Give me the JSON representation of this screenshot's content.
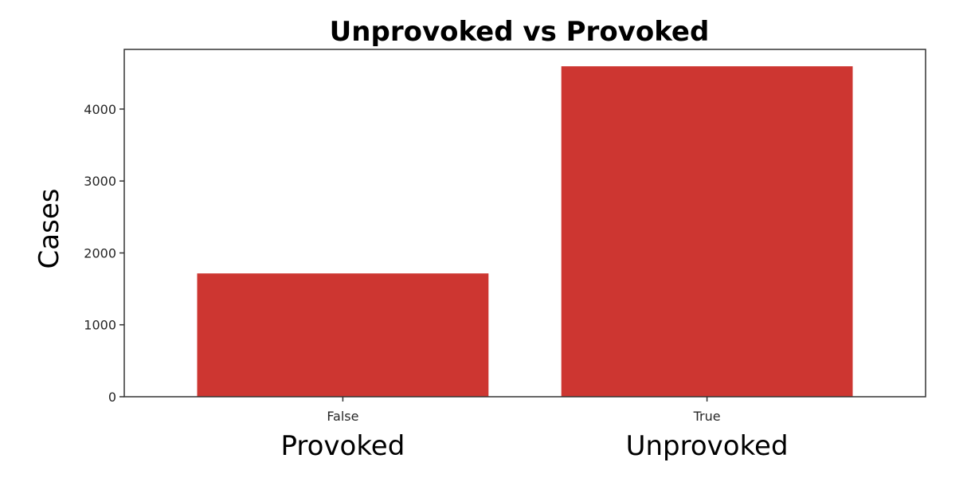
{
  "chart_data": {
    "type": "bar",
    "title": "Unprovoked vs Provoked",
    "xlabel": "",
    "ylabel": "Cases",
    "categories": [
      "False",
      "True"
    ],
    "category_sublabels": [
      "Provoked",
      "Unprovoked"
    ],
    "values": [
      1715,
      4595
    ],
    "ylim": [
      0,
      4830
    ],
    "yticks": [
      0,
      1000,
      2000,
      3000,
      4000
    ],
    "grid": false,
    "legend": "none",
    "bar_color": "#cd3631"
  }
}
